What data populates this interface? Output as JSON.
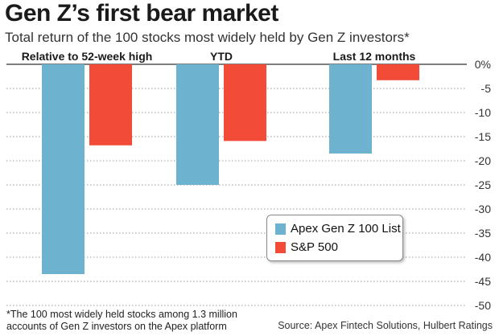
{
  "title": "Gen Z’s first bear market",
  "subtitle": "Total return of the 100 stocks most widely held by Gen Z investors*",
  "footnote": "*The 100 most widely held stocks among 1.3 million accounts of Gen Z investors on the Apex platform",
  "source": "Source: Apex Fintech Solutions, Hulbert Ratings",
  "colors": {
    "series1": "#6db2cf",
    "series2": "#f24b38",
    "grid": "#9a9a9a"
  },
  "chart_data": {
    "type": "bar",
    "categories": [
      "Relative to 52-week high",
      "YTD",
      "Last 12 months"
    ],
    "series": [
      {
        "name": "Apex Gen Z 100 List",
        "values": [
          -43.5,
          -25.0,
          -18.5
        ]
      },
      {
        "name": "S&P 500",
        "values": [
          -16.8,
          -15.9,
          -3.3
        ]
      }
    ],
    "ylim": [
      -50,
      0
    ],
    "yticks": [
      0,
      -5,
      -10,
      -15,
      -20,
      -25,
      -30,
      -35,
      -40,
      -45,
      -50
    ],
    "ytick_labels": [
      "0%",
      "-5",
      "-10",
      "-15",
      "-20",
      "-25",
      "-30",
      "-35",
      "-40",
      "-45",
      "-50"
    ],
    "grid": true,
    "legend_position": "bottom-right",
    "xlabel": "",
    "ylabel": ""
  }
}
